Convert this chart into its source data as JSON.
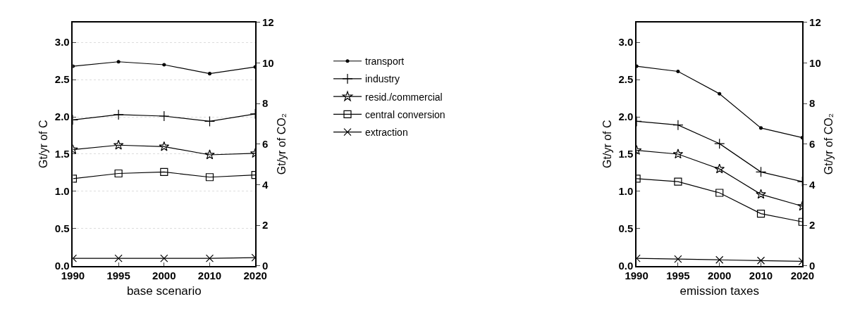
{
  "chart_data": [
    {
      "type": "line",
      "xlabel": "base scenario",
      "ylabel": "Gt/yr of C",
      "y2label": "Gt/yr of CO₂",
      "categories": [
        "1990",
        "1995",
        "2000",
        "2010",
        "2020"
      ],
      "series": [
        {
          "name": "transport",
          "color": "#000000",
          "marker": "circle",
          "values": [
            2.68,
            2.74,
            2.7,
            2.58,
            2.67
          ]
        },
        {
          "name": "industry",
          "color": "#000000",
          "marker": "cross",
          "values": [
            1.96,
            2.03,
            2.01,
            1.94,
            2.04
          ]
        },
        {
          "name": "resid./commercial",
          "color": "#000000",
          "marker": "star",
          "values": [
            1.56,
            1.62,
            1.6,
            1.49,
            1.51
          ]
        },
        {
          "name": "central conversion",
          "color": "#000000",
          "marker": "square",
          "values": [
            1.17,
            1.24,
            1.26,
            1.19,
            1.22
          ]
        },
        {
          "name": "extraction",
          "color": "#000000",
          "marker": "x",
          "values": [
            0.1,
            0.1,
            0.1,
            0.1,
            0.11
          ]
        }
      ],
      "ylim": [
        0,
        3.27
      ],
      "yticks": [
        {
          "value": 0,
          "label": "0.0"
        },
        0.5,
        {
          "value": 1,
          "label": "1.0"
        },
        1.5,
        {
          "value": 2,
          "label": "2.0"
        },
        2.5,
        {
          "value": 3,
          "label": "3.0"
        }
      ],
      "y2lim": [
        0,
        12
      ],
      "y2ticks": [
        0,
        2,
        4,
        6,
        8,
        10,
        12
      ],
      "grid": "y",
      "legend": "right"
    },
    {
      "type": "line",
      "xlabel": "emission taxes",
      "ylabel": "Gt/yr of C",
      "y2label": "Gt/yr of CO₂",
      "categories": [
        "1990",
        "1995",
        "2000",
        "2010",
        "2020"
      ],
      "series": [
        {
          "color": "#000000",
          "marker": "circle",
          "values": [
            2.68,
            2.61,
            2.31,
            1.85,
            1.72
          ]
        },
        {
          "color": "#000000",
          "marker": "cross",
          "values": [
            1.94,
            1.89,
            1.64,
            1.26,
            1.13
          ]
        },
        {
          "color": "#000000",
          "marker": "star",
          "values": [
            1.55,
            1.5,
            1.3,
            0.96,
            0.8
          ]
        },
        {
          "color": "#000000",
          "marker": "square",
          "values": [
            1.17,
            1.13,
            0.98,
            0.7,
            0.59
          ]
        },
        {
          "color": "#000000",
          "marker": "x",
          "values": [
            0.1,
            0.09,
            0.08,
            0.07,
            0.06
          ]
        }
      ],
      "ylim": [
        0,
        3.27
      ],
      "yticks": [
        {
          "value": 0,
          "label": "0.0"
        },
        0.5,
        {
          "value": 1,
          "label": "1.0"
        },
        1.5,
        {
          "value": 2,
          "label": "2.0"
        },
        2.5,
        {
          "value": 3,
          "label": "3.0"
        }
      ],
      "y2lim": [
        0,
        12
      ],
      "y2ticks": [
        0,
        2,
        4,
        6,
        8,
        10,
        12
      ]
    }
  ]
}
